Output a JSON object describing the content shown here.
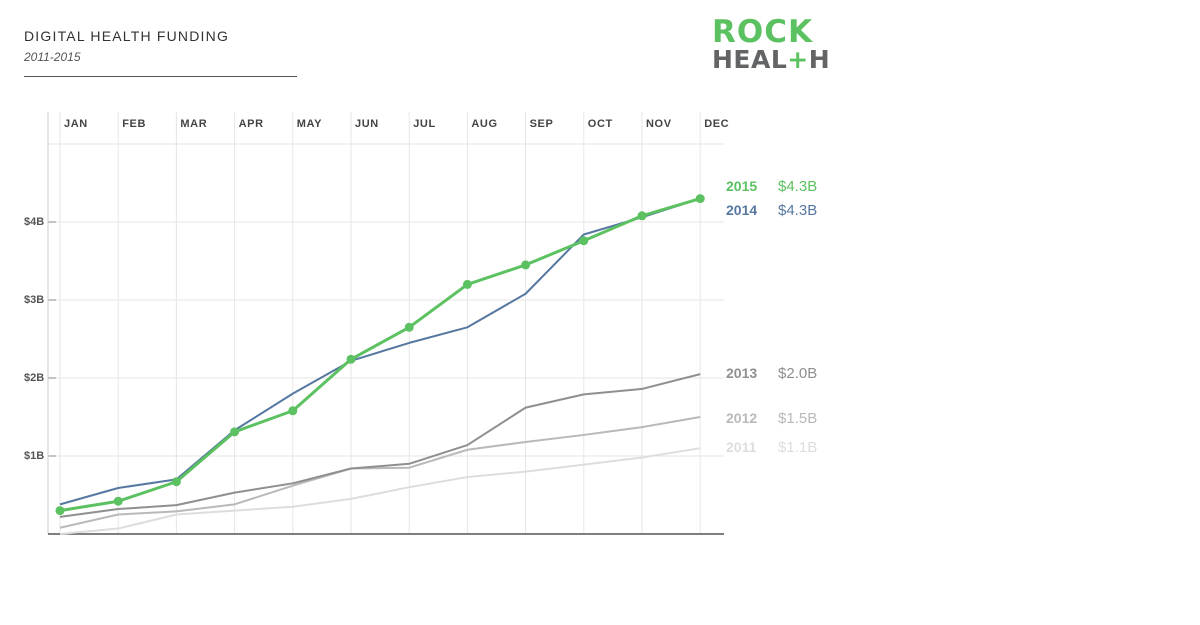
{
  "header": {
    "title": "DIGITAL HEALTH FUNDING",
    "subtitle": "2011-2015"
  },
  "logo": {
    "line1": "ROCK",
    "line2_part1": "HEAL",
    "line2_plus": "+",
    "line2_part2": "H"
  },
  "chart_data": {
    "type": "line",
    "title": "DIGITAL HEALTH FUNDING",
    "subtitle": "2011-2015",
    "categories": [
      "JAN",
      "FEB",
      "MAR",
      "APR",
      "MAY",
      "JUN",
      "JUL",
      "AUG",
      "SEP",
      "OCT",
      "NOV",
      "DEC"
    ],
    "ylim": [
      0,
      5
    ],
    "y_ticks": [
      {
        "value": 1,
        "label": "$1B"
      },
      {
        "value": 2,
        "label": "$2B"
      },
      {
        "value": 3,
        "label": "$3B"
      },
      {
        "value": 4,
        "label": "$4B"
      }
    ],
    "grid": true,
    "series": [
      {
        "name": "2011",
        "end_label": "$1.1B",
        "color": "#dddddd",
        "markers": false,
        "values": [
          0.0,
          0.07,
          0.25,
          0.3,
          0.35,
          0.45,
          0.6,
          0.73,
          0.8,
          0.89,
          0.98,
          1.1
        ]
      },
      {
        "name": "2012",
        "end_label": "$1.5B",
        "color": "#b9b9b9",
        "markers": false,
        "values": [
          0.08,
          0.25,
          0.29,
          0.38,
          0.62,
          0.84,
          0.85,
          1.08,
          1.18,
          1.27,
          1.37,
          1.5
        ]
      },
      {
        "name": "2013",
        "end_label": "$2.0B",
        "color": "#8f8f8f",
        "markers": false,
        "values": [
          0.22,
          0.32,
          0.37,
          0.53,
          0.65,
          0.84,
          0.9,
          1.14,
          1.62,
          1.79,
          1.86,
          2.05
        ]
      },
      {
        "name": "2014",
        "end_label": "$4.3B",
        "color": "#5678a0",
        "markers": false,
        "values": [
          0.38,
          0.59,
          0.7,
          1.33,
          1.8,
          2.22,
          2.45,
          2.65,
          3.08,
          3.84,
          4.06,
          4.3
        ]
      },
      {
        "name": "2015",
        "end_label": "$4.3B",
        "color": "#5cc160",
        "markers": true,
        "values": [
          0.3,
          0.42,
          0.67,
          1.31,
          1.58,
          2.24,
          2.65,
          3.2,
          3.45,
          3.76,
          4.08,
          4.3
        ]
      }
    ]
  }
}
